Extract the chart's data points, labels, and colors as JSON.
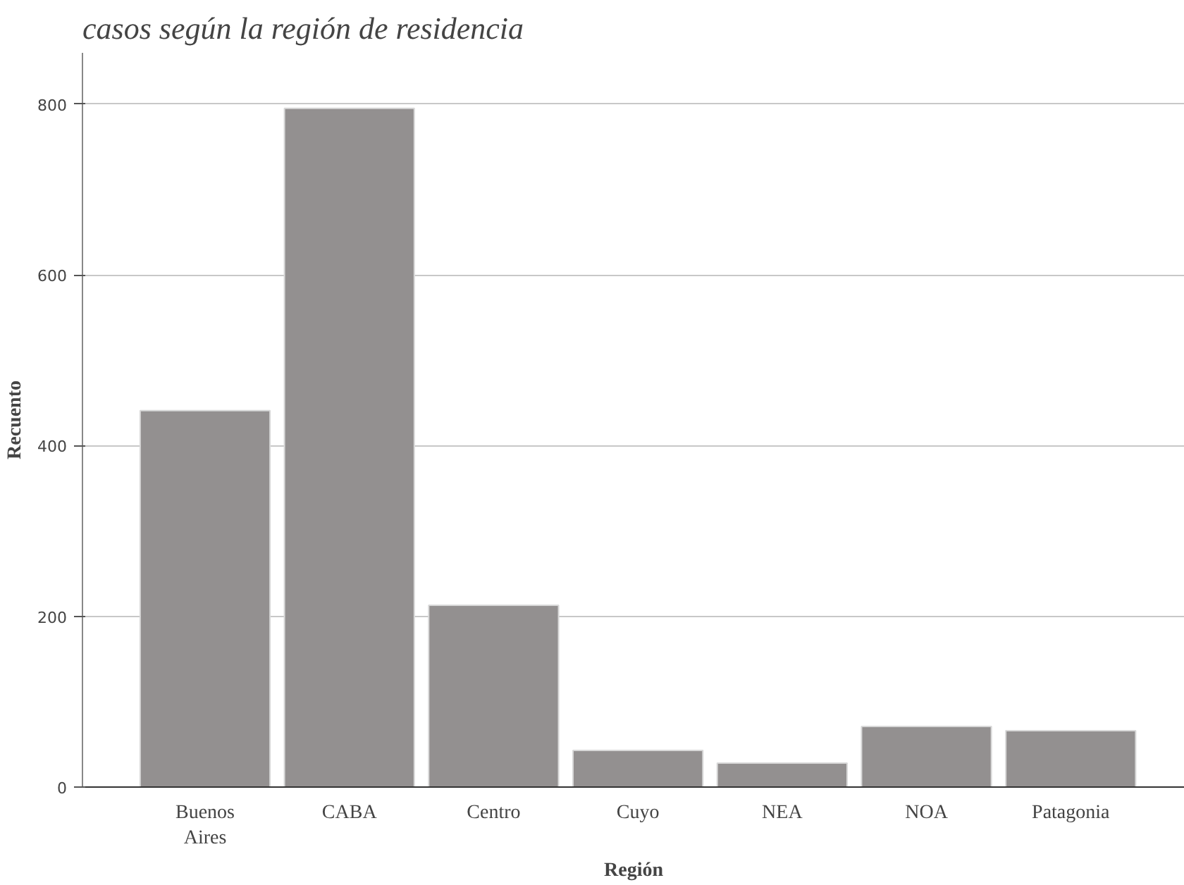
{
  "chart_data": {
    "type": "bar",
    "title": "casos según la región de residencia",
    "xlabel": "Región",
    "ylabel": "Recuento",
    "categories": [
      "Buenos Aires",
      "CABA",
      "Centro",
      "Cuyo",
      "NEA",
      "NOA",
      "Patagonia"
    ],
    "values": [
      441,
      795,
      213,
      43,
      28,
      71,
      66
    ],
    "color": "#939090",
    "ylim": [
      0,
      860
    ],
    "yticks": [
      0,
      200,
      400,
      600,
      800
    ],
    "grid": "y"
  }
}
